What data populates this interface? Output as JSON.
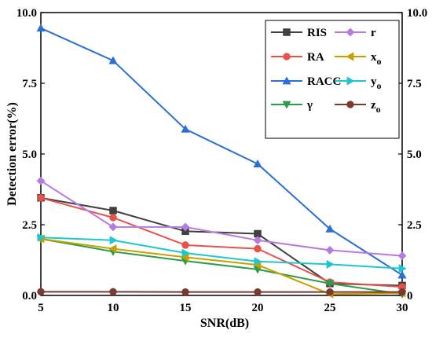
{
  "chart_data": {
    "type": "line",
    "xlabel": "SNR(dB)",
    "ylabel": "Detection error(%)",
    "xlim": [
      5,
      30
    ],
    "ylim": [
      0,
      10
    ],
    "x_ticks": [
      "5",
      "10",
      "15",
      "20",
      "25",
      "30"
    ],
    "y_ticks": [
      "0.0",
      "2.5",
      "5.0",
      "7.5",
      "10.0"
    ],
    "y_ticks_right": [
      "0",
      "2.5",
      "5.0",
      "7.5",
      "10.0"
    ],
    "x": [
      5,
      10,
      15,
      20,
      25,
      30
    ],
    "legend_position": "top-right",
    "grid": false,
    "series": [
      {
        "name": "RIS",
        "sub": "",
        "color": "#404040",
        "marker": "square",
        "values": [
          3.45,
          3.0,
          2.27,
          2.18,
          0.42,
          0.35
        ]
      },
      {
        "name": "RA",
        "sub": "",
        "color": "#e8504a",
        "marker": "circle",
        "values": [
          3.45,
          2.75,
          1.78,
          1.65,
          0.47,
          0.3
        ]
      },
      {
        "name": "RACC",
        "sub": "",
        "color": "#2a6fd6",
        "marker": "triangle-up",
        "values": [
          9.45,
          8.3,
          5.88,
          4.65,
          2.35,
          0.72
        ]
      },
      {
        "name": "γ",
        "sub": "",
        "color": "#2e9c4a",
        "marker": "triangle-down",
        "values": [
          2.0,
          1.55,
          1.22,
          0.92,
          0.42,
          0.05
        ]
      },
      {
        "name": "r",
        "sub": "",
        "color": "#b57be0",
        "marker": "diamond",
        "values": [
          4.05,
          2.42,
          2.42,
          1.95,
          1.6,
          1.4
        ]
      },
      {
        "name": "x",
        "sub": "o",
        "color": "#c9a000",
        "marker": "triangle-left",
        "values": [
          2.0,
          1.65,
          1.35,
          1.08,
          0.05,
          0.08
        ]
      },
      {
        "name": "y",
        "sub": "o",
        "color": "#1cc7cf",
        "marker": "triangle-right",
        "values": [
          2.05,
          1.95,
          1.5,
          1.2,
          1.1,
          0.95
        ]
      },
      {
        "name": "z",
        "sub": "o",
        "color": "#7a3a30",
        "marker": "circle",
        "values": [
          0.13,
          0.13,
          0.12,
          0.12,
          0.12,
          0.12
        ]
      }
    ]
  }
}
